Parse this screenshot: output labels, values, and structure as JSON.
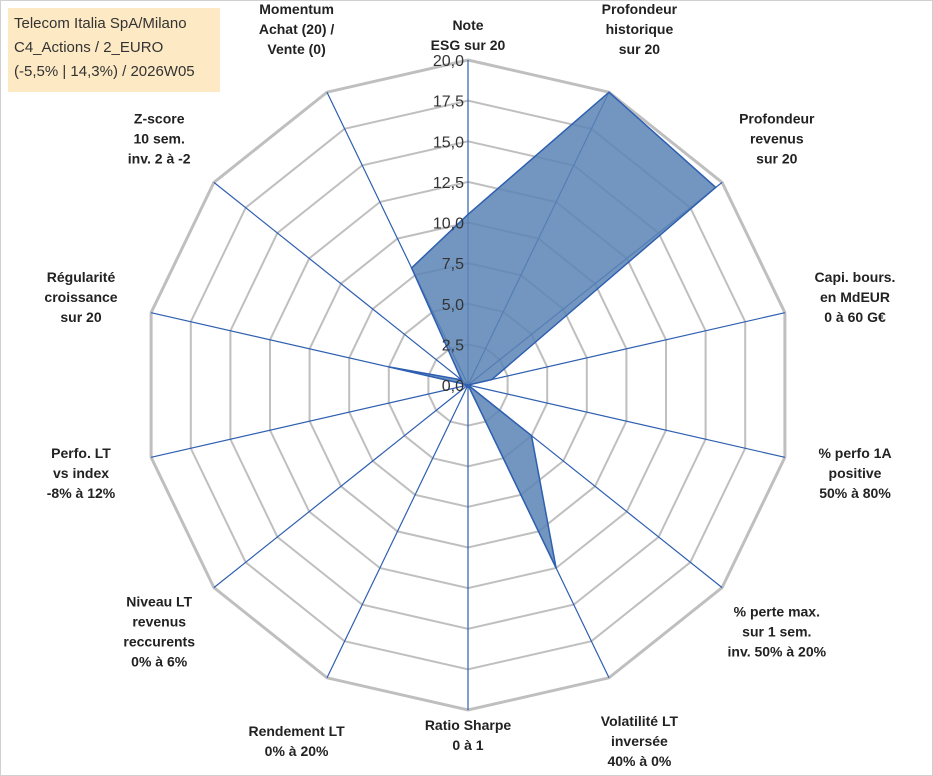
{
  "info": {
    "line1": "Telecom Italia SpA/Milano",
    "line2": "C4_Actions / 2_EURO",
    "line3": "(-5,5% | 14,3%) / 2026W05"
  },
  "colors": {
    "fill": "#5b84b5",
    "axis": "#2e5fb0",
    "grid": "#bfbfbf"
  },
  "chart_data": {
    "type": "radar",
    "title": "",
    "rlim": [
      0,
      20
    ],
    "ticks": [
      "0,0",
      "2,5",
      "5,0",
      "7,5",
      "10,0",
      "12,5",
      "15,0",
      "17,5",
      "20,0"
    ],
    "axes": [
      {
        "label": [
          "Note",
          "ESG sur 20"
        ],
        "value": 10.5
      },
      {
        "label": [
          "Profondeur",
          "historique",
          "sur 20"
        ],
        "value": 20
      },
      {
        "label": [
          "Profondeur",
          "revenus",
          "sur 20"
        ],
        "value": 19.5
      },
      {
        "label": [
          "Capi. bours.",
          "en MdEUR",
          "0 à 60 G€"
        ],
        "value": 1.5
      },
      {
        "label": [
          "% perfo 1A",
          "positive",
          "50% à 80%"
        ],
        "value": 0
      },
      {
        "label": [
          "% perte max.",
          "sur 1 sem.",
          "inv. 50% à 20%"
        ],
        "value": 5
      },
      {
        "label": [
          "Volatilité LT",
          "inversée",
          "40% à 0%"
        ],
        "value": 12.5
      },
      {
        "label": [
          "Ratio Sharpe",
          "0 à 1"
        ],
        "value": 0
      },
      {
        "label": [
          "Rendement LT",
          "0% à 20%"
        ],
        "value": 0
      },
      {
        "label": [
          "Niveau LT",
          "revenus",
          "reccurents",
          "0% à 6%"
        ],
        "value": 0
      },
      {
        "label": [
          "Perfo. LT",
          "vs index",
          "-8% à 12%"
        ],
        "value": 0
      },
      {
        "label": [
          "Régularité",
          "croissance",
          "sur 20"
        ],
        "value": 5
      },
      {
        "label": [
          "Z-score",
          "10 sem.",
          "inv. 2 à -2"
        ],
        "value": 0.5
      },
      {
        "label": [
          "Momentum",
          "Achat (20) /",
          "Vente (0)"
        ],
        "value": 8
      }
    ]
  }
}
